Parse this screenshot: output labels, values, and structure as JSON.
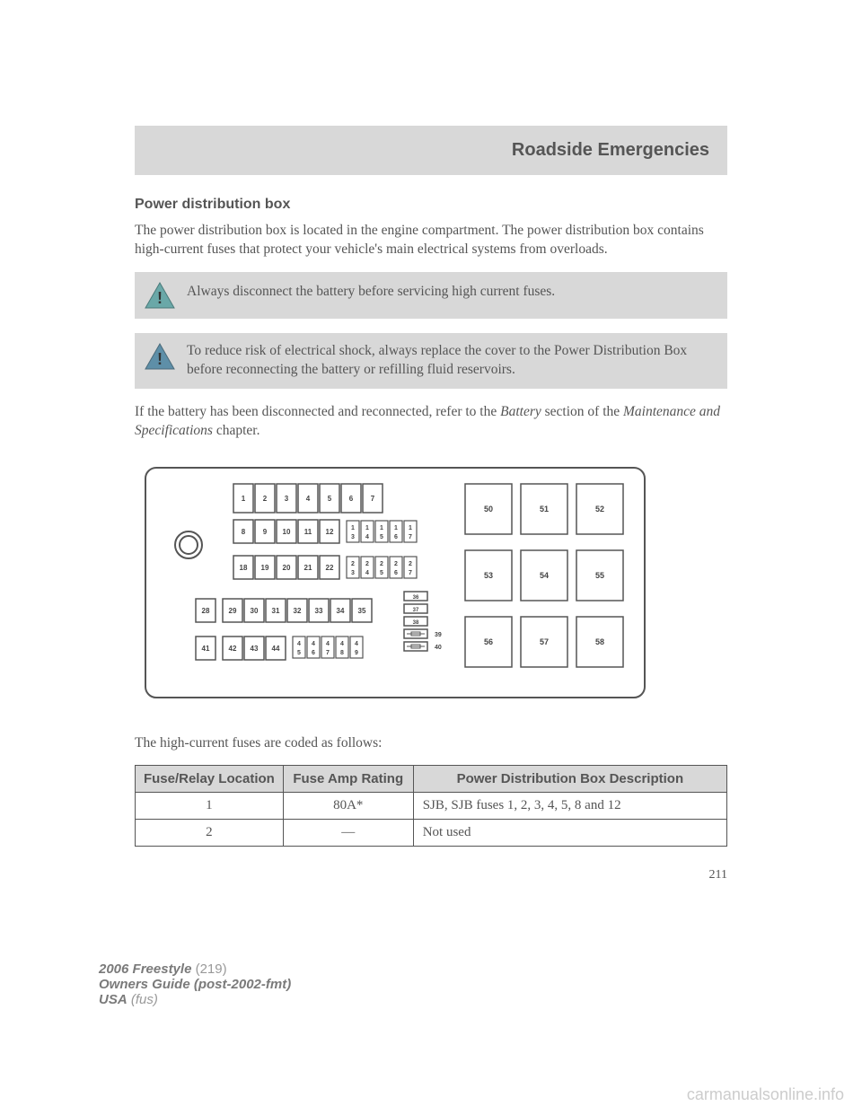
{
  "chapter": "Roadside Emergencies",
  "section_title": "Power distribution box",
  "intro": "The power distribution box is located in the engine compartment. The power distribution box contains high-current fuses that protect your vehicle's main electrical systems from overloads.",
  "warning1": "Always disconnect the battery before servicing high current fuses.",
  "warning2": "To reduce risk of electrical shock, always replace the cover to the Power Distribution Box before reconnecting the battery or refilling fluid reservoirs.",
  "battery_note_pre": "If the battery has been disconnected and reconnected, refer to the ",
  "battery_note_italic1": "Battery",
  "battery_note_mid": " section of the ",
  "battery_note_italic2": "Maintenance and Specifications",
  "battery_note_post": " chapter.",
  "diagram": {
    "stroke": "#555555",
    "fill_bg": "#ffffff",
    "font": "Arial, Helvetica, sans-serif",
    "row_a": [
      "1",
      "2",
      "3",
      "4",
      "5",
      "6",
      "7"
    ],
    "row_b": [
      "8",
      "9",
      "10",
      "11",
      "12"
    ],
    "row_b_small": [
      "13",
      "14",
      "15",
      "16",
      "17"
    ],
    "row_c": [
      "18",
      "19",
      "20",
      "21",
      "22"
    ],
    "row_c_small": [
      "23",
      "24",
      "25",
      "26",
      "27"
    ],
    "row_d_left": "28",
    "row_d": [
      "29",
      "30",
      "31",
      "32",
      "33",
      "34",
      "35"
    ],
    "row_e_left": "41",
    "row_e": [
      "42",
      "43",
      "44"
    ],
    "row_e_small": [
      "45",
      "46",
      "47",
      "48",
      "49"
    ],
    "mid_small": [
      "36",
      "37",
      "38"
    ],
    "mid_side": [
      "39",
      "40"
    ],
    "relays_r1": [
      "50",
      "51",
      "52"
    ],
    "relays_r2": [
      "53",
      "54",
      "55"
    ],
    "relays_r3": [
      "56",
      "57",
      "58"
    ]
  },
  "table_intro": "The high-current fuses are coded as follows:",
  "table": {
    "head": [
      "Fuse/Relay Location",
      "Fuse Amp Rating",
      "Power Distribution Box Description"
    ],
    "rows": [
      {
        "loc": "1",
        "amp": "80A*",
        "desc": "SJB, SJB fuses 1, 2, 3, 4, 5, 8 and 12"
      },
      {
        "loc": "2",
        "amp": "—",
        "desc": "Not used"
      }
    ],
    "col_widths": [
      "25%",
      "22%",
      "53%"
    ]
  },
  "page_number": "211",
  "footer": {
    "model": "2006 Freestyle",
    "code": "(219)",
    "guide": "Owners Guide (post-2002-fmt)",
    "region": "USA",
    "region_code": "(fus)"
  },
  "watermark": "carmanualsonline.info",
  "colors": {
    "page_bg": "#ffffff",
    "header_bg": "#d8d8d8",
    "text": "#555555",
    "icon_fill": "#6aa8a8",
    "icon_fill2": "#5e8fa8"
  }
}
